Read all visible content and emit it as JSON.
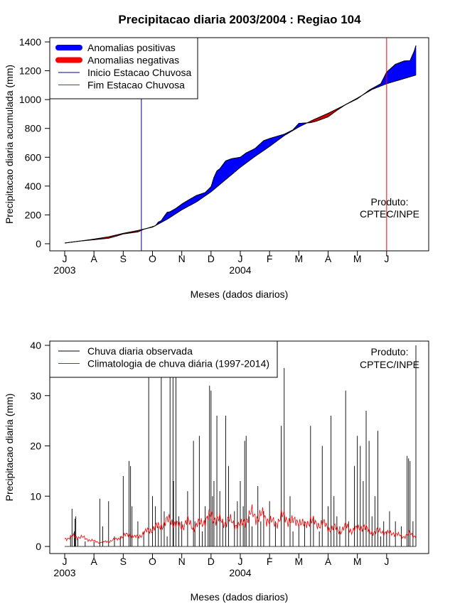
{
  "figure_title": "Precipitacao diaria 2003/2004 : Regiao 104",
  "chart_data": [
    {
      "type": "area",
      "title": "Precipitacao diaria 2003/2004 : Regiao 104",
      "xlabel": "Meses (dados diarios)",
      "ylabel": "Precipitacao diaria acumulada (mm)",
      "ylim": [
        0,
        1400
      ],
      "yticks": [
        0,
        200,
        400,
        600,
        800,
        1000,
        1200,
        1400
      ],
      "month_labels": [
        "J",
        "A",
        "S",
        "O",
        "N",
        "D",
        "J",
        "F",
        "M",
        "A",
        "M",
        "J"
      ],
      "year_labels": [
        {
          "label": "2003",
          "month_index": 0
        },
        {
          "label": "2004",
          "month_index": 6
        }
      ],
      "legend": {
        "position": "top-left",
        "items": [
          {
            "label": "Anomalias positivas",
            "color": "#0000ff",
            "kind": "thick"
          },
          {
            "label": "Anomalias negativas",
            "color": "#ff0000",
            "kind": "thick"
          },
          {
            "label": "Inicio Estacao Chuvosa",
            "color": "#00008b",
            "kind": "line"
          },
          {
            "label": "Fim Estacao Chuvosa",
            "color": "#ff0000",
            "kind": "line"
          }
        ]
      },
      "credit": [
        "Produto:",
        "CPTEC/INPE"
      ],
      "rainy_season_start_month": 2.62,
      "rainy_season_end_month": 11.0,
      "series": [
        {
          "name": "Observada acumulada",
          "points": [
            [
              0,
              5
            ],
            [
              0.5,
              18
            ],
            [
              1.0,
              28
            ],
            [
              1.5,
              38
            ],
            [
              1.8,
              55
            ],
            [
              2.0,
              68
            ],
            [
              2.5,
              82
            ],
            [
              2.7,
              100
            ],
            [
              2.9,
              112
            ],
            [
              3.1,
              125
            ],
            [
              3.2,
              150
            ],
            [
              3.3,
              160
            ],
            [
              3.4,
              190
            ],
            [
              3.5,
              218
            ],
            [
              3.6,
              222
            ],
            [
              3.8,
              245
            ],
            [
              4.0,
              275
            ],
            [
              4.2,
              300
            ],
            [
              4.5,
              335
            ],
            [
              4.8,
              355
            ],
            [
              5.0,
              395
            ],
            [
              5.1,
              460
            ],
            [
              5.2,
              505
            ],
            [
              5.3,
              520
            ],
            [
              5.5,
              575
            ],
            [
              5.7,
              590
            ],
            [
              6.0,
              600
            ],
            [
              6.2,
              630
            ],
            [
              6.5,
              660
            ],
            [
              6.8,
              715
            ],
            [
              7.0,
              730
            ],
            [
              7.5,
              760
            ],
            [
              7.8,
              790
            ],
            [
              8.0,
              835
            ],
            [
              8.4,
              840
            ],
            [
              8.6,
              850
            ],
            [
              9.0,
              880
            ],
            [
              9.3,
              925
            ],
            [
              9.6,
              965
            ],
            [
              10.0,
              1005
            ],
            [
              10.4,
              1065
            ],
            [
              10.8,
              1110
            ],
            [
              11.0,
              1190
            ],
            [
              11.3,
              1245
            ],
            [
              11.6,
              1268
            ],
            [
              11.8,
              1270
            ],
            [
              11.95,
              1340
            ],
            [
              12.0,
              1375
            ]
          ]
        },
        {
          "name": "Climatologia acumulada",
          "points": [
            [
              0,
              5
            ],
            [
              0.5,
              18
            ],
            [
              1.0,
              32
            ],
            [
              1.5,
              48
            ],
            [
              2.0,
              72
            ],
            [
              2.5,
              92
            ],
            [
              3.0,
              115
            ],
            [
              3.5,
              170
            ],
            [
              4.0,
              235
            ],
            [
              4.5,
              290
            ],
            [
              5.0,
              360
            ],
            [
              5.5,
              445
            ],
            [
              6.0,
              530
            ],
            [
              6.5,
              605
            ],
            [
              7.0,
              675
            ],
            [
              7.5,
              750
            ],
            [
              8.0,
              810
            ],
            [
              8.5,
              860
            ],
            [
              9.0,
              905
            ],
            [
              9.5,
              955
            ],
            [
              10.0,
              1010
            ],
            [
              10.5,
              1070
            ],
            [
              11.0,
              1110
            ],
            [
              11.5,
              1140
            ],
            [
              12.0,
              1170
            ]
          ]
        }
      ]
    },
    {
      "type": "line",
      "xlabel": "Meses (dados diarios)",
      "ylabel": "Precipitacao diaria (mm)",
      "ylim": [
        0,
        40
      ],
      "yticks": [
        0,
        10,
        20,
        30,
        40
      ],
      "month_labels": [
        "J",
        "A",
        "S",
        "O",
        "N",
        "D",
        "J",
        "F",
        "M",
        "A",
        "M",
        "J"
      ],
      "year_labels": [
        {
          "label": "2003",
          "month_index": 0
        },
        {
          "label": "2004",
          "month_index": 6
        }
      ],
      "legend": {
        "position": "top-left",
        "items": [
          {
            "label": "Chuva diaria observada",
            "color": "#000000",
            "kind": "line"
          },
          {
            "label": "Climatologia de chuva diária (1997-2014)",
            "color": "#ff0000",
            "kind": "line"
          }
        ]
      },
      "credit": [
        "Produto:",
        "CPTEC/INPE"
      ],
      "series": [
        {
          "name": "Chuva diaria observada",
          "spikes": [
            [
              0.2,
              2
            ],
            [
              0.25,
              7.5
            ],
            [
              0.33,
              3
            ],
            [
              0.35,
              5.5
            ],
            [
              0.38,
              6
            ],
            [
              0.45,
              1.5
            ],
            [
              0.7,
              1
            ],
            [
              1.0,
              1
            ],
            [
              1.2,
              9.5
            ],
            [
              1.3,
              4
            ],
            [
              1.5,
              9
            ],
            [
              1.7,
              2
            ],
            [
              1.9,
              2
            ],
            [
              2.0,
              14
            ],
            [
              2.2,
              17
            ],
            [
              2.25,
              16
            ],
            [
              2.3,
              8
            ],
            [
              2.5,
              5
            ],
            [
              2.7,
              3
            ],
            [
              2.87,
              40
            ],
            [
              3.0,
              10
            ],
            [
              3.1,
              8
            ],
            [
              3.2,
              4
            ],
            [
              3.3,
              40
            ],
            [
              3.4,
              7
            ],
            [
              3.5,
              2
            ],
            [
              3.6,
              40
            ],
            [
              3.7,
              40
            ],
            [
              3.72,
              13
            ],
            [
              3.8,
              40
            ],
            [
              3.9,
              6
            ],
            [
              4.0,
              5
            ],
            [
              4.2,
              11
            ],
            [
              4.4,
              21
            ],
            [
              4.45,
              5
            ],
            [
              4.6,
              22
            ],
            [
              4.7,
              3
            ],
            [
              4.8,
              8
            ],
            [
              4.9,
              6
            ],
            [
              4.95,
              32
            ],
            [
              5.0,
              31
            ],
            [
              5.05,
              10
            ],
            [
              5.1,
              13
            ],
            [
              5.2,
              26
            ],
            [
              5.3,
              11
            ],
            [
              5.4,
              5
            ],
            [
              5.5,
              26
            ],
            [
              5.6,
              16
            ],
            [
              5.8,
              7
            ],
            [
              5.9,
              9
            ],
            [
              6.0,
              13
            ],
            [
              6.1,
              8
            ],
            [
              6.15,
              21
            ],
            [
              6.2,
              22
            ],
            [
              6.3,
              6
            ],
            [
              6.4,
              4
            ],
            [
              6.6,
              12
            ],
            [
              6.7,
              5
            ],
            [
              6.8,
              7
            ],
            [
              7.0,
              9
            ],
            [
              7.2,
              5
            ],
            [
              7.4,
              24
            ],
            [
              7.5,
              35.5
            ],
            [
              7.7,
              10
            ],
            [
              7.8,
              3
            ],
            [
              8.0,
              4
            ],
            [
              8.2,
              5
            ],
            [
              8.4,
              24
            ],
            [
              8.5,
              6
            ],
            [
              8.7,
              3
            ],
            [
              8.8,
              20
            ],
            [
              9.0,
              8
            ],
            [
              9.1,
              26
            ],
            [
              9.2,
              10
            ],
            [
              9.3,
              6
            ],
            [
              9.4,
              4
            ],
            [
              9.6,
              31
            ],
            [
              9.7,
              5
            ],
            [
              9.9,
              16
            ],
            [
              10.0,
              22
            ],
            [
              10.1,
              20
            ],
            [
              10.2,
              13
            ],
            [
              10.3,
              27
            ],
            [
              10.4,
              21
            ],
            [
              10.5,
              6
            ],
            [
              10.6,
              10
            ],
            [
              10.7,
              23
            ],
            [
              10.8,
              2
            ],
            [
              10.9,
              5
            ],
            [
              11.0,
              3
            ],
            [
              11.1,
              7
            ],
            [
              11.3,
              5
            ],
            [
              11.5,
              4
            ],
            [
              11.7,
              18
            ],
            [
              11.75,
              17.5
            ],
            [
              11.8,
              17
            ],
            [
              11.9,
              5
            ],
            [
              12.0,
              40
            ]
          ]
        },
        {
          "name": "Climatologia de chuva diária (1997-2014)",
          "points": [
            [
              0,
              1.5
            ],
            [
              0.3,
              2.0
            ],
            [
              0.6,
              1.8
            ],
            [
              0.9,
              1.2
            ],
            [
              1.2,
              0.8
            ],
            [
              1.5,
              1.0
            ],
            [
              1.8,
              1.5
            ],
            [
              2.0,
              2.0
            ],
            [
              2.2,
              2.5
            ],
            [
              2.4,
              1.8
            ],
            [
              2.6,
              2.2
            ],
            [
              2.8,
              3.0
            ],
            [
              3.0,
              3.5
            ],
            [
              3.2,
              4.0
            ],
            [
              3.4,
              4.5
            ],
            [
              3.6,
              5.5
            ],
            [
              3.8,
              4.2
            ],
            [
              4.0,
              4.0
            ],
            [
              4.2,
              5.0
            ],
            [
              4.4,
              3.8
            ],
            [
              4.6,
              4.5
            ],
            [
              4.8,
              5.2
            ],
            [
              5.0,
              6.0
            ],
            [
              5.2,
              5.5
            ],
            [
              5.4,
              4.8
            ],
            [
              5.6,
              5.2
            ],
            [
              5.8,
              4.5
            ],
            [
              6.0,
              4.0
            ],
            [
              6.2,
              5.5
            ],
            [
              6.4,
              6.5
            ],
            [
              6.6,
              5.8
            ],
            [
              6.8,
              6.2
            ],
            [
              7.0,
              5.0
            ],
            [
              7.2,
              4.5
            ],
            [
              7.4,
              6.0
            ],
            [
              7.6,
              5.5
            ],
            [
              7.8,
              4.8
            ],
            [
              8.0,
              5.2
            ],
            [
              8.2,
              4.0
            ],
            [
              8.4,
              5.5
            ],
            [
              8.6,
              4.2
            ],
            [
              8.8,
              4.8
            ],
            [
              9.0,
              3.5
            ],
            [
              9.2,
              3.8
            ],
            [
              9.4,
              3.0
            ],
            [
              9.6,
              4.0
            ],
            [
              9.8,
              3.2
            ],
            [
              10.0,
              3.5
            ],
            [
              10.2,
              4.0
            ],
            [
              10.4,
              3.0
            ],
            [
              10.6,
              2.8
            ],
            [
              10.8,
              3.2
            ],
            [
              11.0,
              2.5
            ],
            [
              11.2,
              2.8
            ],
            [
              11.4,
              2.2
            ],
            [
              11.6,
              2.0
            ],
            [
              11.8,
              2.5
            ],
            [
              12.0,
              2.0
            ]
          ]
        }
      ]
    }
  ]
}
